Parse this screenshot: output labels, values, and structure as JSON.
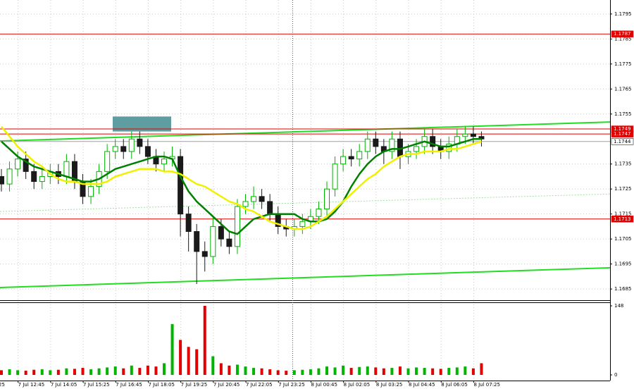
{
  "chart_data": {
    "type": "candlestick",
    "categories": [
      null,
      null,
      null,
      "7 Jul 12:45",
      null,
      null,
      null,
      "7 Jul 14:05",
      null,
      null,
      null,
      "7 Jul 15:25",
      null,
      null,
      null,
      "7 Jul 16:45",
      null,
      null,
      null,
      "7 Jul 18:05",
      null,
      null,
      null,
      "7 Jul 19:25",
      null,
      null,
      null,
      "7 Jul 20:45",
      null,
      null,
      null,
      "7 Jul 22:05",
      null,
      null,
      null,
      "7 Jul 23:25",
      null,
      null,
      null,
      "8 Jul 00:45",
      null,
      null,
      null,
      "8 Jul 02:05",
      null,
      null,
      null,
      "8 Jul 03:25",
      null,
      null,
      null,
      "8 Jul 04:45",
      null,
      null,
      null,
      "8 Jul 06:05",
      null,
      null,
      null,
      "8 Jul 07:25"
    ],
    "clipped_label": "25",
    "open": [
      1.173,
      1.1727,
      1.1733,
      1.1737,
      1.1732,
      1.1728,
      1.173,
      1.1732,
      1.173,
      1.1736,
      1.1728,
      1.1722,
      1.1726,
      1.1732,
      1.174,
      1.1742,
      1.174,
      1.1745,
      1.1742,
      1.1738,
      1.1735,
      1.1737,
      1.1738,
      1.1715,
      1.1708,
      1.17,
      1.1698,
      1.171,
      1.1705,
      1.1702,
      1.1718,
      1.172,
      1.1722,
      1.172,
      1.1715,
      1.171,
      1.1709,
      1.171,
      1.1712,
      1.1714,
      1.1717,
      1.1725,
      1.1735,
      1.1738,
      1.1737,
      1.174,
      1.1745,
      1.1742,
      1.174,
      1.1745,
      1.1738,
      1.174,
      1.1742,
      1.1746,
      1.1742,
      1.174,
      1.1743,
      1.1746,
      1.1747,
      1.1746
    ],
    "high": [
      1.1733,
      1.1736,
      1.174,
      1.174,
      1.1735,
      1.1733,
      1.1735,
      1.1735,
      1.1739,
      1.1739,
      1.1731,
      1.1729,
      1.1735,
      1.1743,
      1.1745,
      1.1745,
      1.1748,
      1.1748,
      1.1745,
      1.1741,
      1.174,
      1.1742,
      1.1741,
      1.1718,
      1.1711,
      1.1704,
      1.1714,
      1.1713,
      1.1708,
      1.1721,
      1.1723,
      1.1726,
      1.1725,
      1.1723,
      1.1718,
      1.1713,
      1.1713,
      1.1715,
      1.1717,
      1.172,
      1.1728,
      1.1738,
      1.1741,
      1.1741,
      1.1743,
      1.1748,
      1.1748,
      1.1745,
      1.1748,
      1.1748,
      1.1743,
      1.1745,
      1.1749,
      1.1749,
      1.1745,
      1.1746,
      1.1749,
      1.175,
      1.175,
      1.1748
    ],
    "low": [
      1.1724,
      1.1724,
      1.173,
      1.1729,
      1.1725,
      1.1725,
      1.1727,
      1.1727,
      1.1727,
      1.1725,
      1.1719,
      1.1719,
      1.1723,
      1.1729,
      1.1737,
      1.1737,
      1.1737,
      1.1739,
      1.1735,
      1.1732,
      1.1732,
      1.1734,
      1.1706,
      1.17,
      1.1687,
      1.1692,
      1.1695,
      1.1702,
      1.1699,
      1.1699,
      1.1715,
      1.1717,
      1.1717,
      1.1712,
      1.1707,
      1.1706,
      1.1706,
      1.1707,
      1.1709,
      1.1711,
      1.1714,
      1.1722,
      1.1732,
      1.1734,
      1.1734,
      1.1737,
      1.1739,
      1.1735,
      1.1737,
      1.1733,
      1.1735,
      1.1737,
      1.1739,
      1.1739,
      1.1737,
      1.1737,
      1.174,
      1.1743,
      1.1743,
      1.1742
    ],
    "close": [
      1.1727,
      1.1733,
      1.1737,
      1.1732,
      1.1728,
      1.173,
      1.1732,
      1.173,
      1.1736,
      1.1728,
      1.1722,
      1.1726,
      1.1732,
      1.174,
      1.1742,
      1.174,
      1.1745,
      1.1742,
      1.1738,
      1.1735,
      1.1737,
      1.1738,
      1.1715,
      1.1708,
      1.17,
      1.1698,
      1.171,
      1.1705,
      1.1702,
      1.1718,
      1.172,
      1.1722,
      1.172,
      1.1715,
      1.171,
      1.1709,
      1.171,
      1.1712,
      1.1714,
      1.1717,
      1.1725,
      1.1735,
      1.1738,
      1.1737,
      1.174,
      1.1745,
      1.1742,
      1.174,
      1.1745,
      1.1738,
      1.174,
      1.1742,
      1.1746,
      1.1742,
      1.174,
      1.1743,
      1.1746,
      1.1747,
      1.1746,
      1.1745
    ],
    "up_color": "#00b400",
    "down_color": "#1a1a1a",
    "series": [
      {
        "color": "#008000",
        "values": [
          1.1744,
          1.1741,
          1.1738,
          1.1736,
          1.1734,
          1.1733,
          1.1732,
          1.1731,
          1.173,
          1.1729,
          1.1728,
          1.1728,
          1.1729,
          1.1731,
          1.1733,
          1.1734,
          1.1735,
          1.1736,
          1.1737,
          1.1738,
          1.1738,
          1.1737,
          1.173,
          1.1724,
          1.172,
          1.1717,
          1.1714,
          1.1711,
          1.1708,
          1.1707,
          1.171,
          1.1713,
          1.1714,
          1.1715,
          1.1715,
          1.1715,
          1.1715,
          1.1713,
          1.1712,
          1.1712,
          1.1713,
          1.1716,
          1.172,
          1.1726,
          1.1731,
          1.1735,
          1.1738,
          1.174,
          1.1741,
          1.1741,
          1.1742,
          1.1743,
          1.1744,
          1.1743,
          1.1742,
          1.1742,
          1.1743,
          1.1744,
          1.1745,
          1.1745
        ]
      },
      {
        "color": "#f0f000",
        "values": [
          1.175,
          1.1746,
          1.1742,
          1.1739,
          1.1736,
          1.1734,
          1.1731,
          1.1729,
          1.1728,
          1.1728,
          1.1727,
          1.1727,
          1.1727,
          1.1728,
          1.173,
          1.1731,
          1.1732,
          1.1733,
          1.1733,
          1.1733,
          1.1732,
          1.1732,
          1.1731,
          1.1729,
          1.1727,
          1.1726,
          1.1724,
          1.1722,
          1.172,
          1.1719,
          1.1717,
          1.1716,
          1.1714,
          1.1712,
          1.1711,
          1.171,
          1.1709,
          1.1709,
          1.171,
          1.1712,
          1.1714,
          1.1717,
          1.172,
          1.1723,
          1.1726,
          1.1729,
          1.1731,
          1.1734,
          1.1736,
          1.1738,
          1.1739,
          1.1739,
          1.174,
          1.174,
          1.174,
          1.1741,
          1.1741,
          1.1742,
          1.1743,
          1.1744
        ]
      }
    ],
    "ylim": [
      1.16808,
      1.18006
    ],
    "yticks": [
      1.1795,
      1.1785,
      1.1775,
      1.1765,
      1.1755,
      1.1735,
      1.1725,
      1.1715,
      1.1705,
      1.1695,
      1.1685
    ],
    "grid": true,
    "levels": [
      {
        "value": 1.1787,
        "color": "#e00000"
      },
      {
        "value": 1.1749,
        "color": "#e00000"
      },
      {
        "value": 1.1747,
        "color": "#e00000"
      },
      {
        "value": 1.1744,
        "color": "#a0a0a0"
      },
      {
        "value": 1.1713,
        "color": "#e00000"
      }
    ],
    "trendlines": [
      {
        "values": [
          1.17442,
          1.17518
        ],
        "color": "#22dd22",
        "dotted": false
      },
      {
        "values": [
          1.16856,
          1.16935
        ],
        "color": "#22dd22",
        "dotted": false
      },
      {
        "values": [
          1.1716,
          1.1723
        ],
        "color": "#9fe09f",
        "dotted": true
      }
    ],
    "zone": {
      "values": [
        1.1748,
        1.1754
      ],
      "color": "#5f9ea0"
    },
    "volume": {
      "values": [
        10,
        12,
        10,
        9,
        11,
        12,
        10,
        11,
        14,
        13,
        15,
        12,
        14,
        16,
        18,
        14,
        20,
        15,
        20,
        18,
        25,
        109,
        75,
        60,
        55,
        148,
        40,
        25,
        20,
        22,
        18,
        15,
        14,
        12,
        10,
        9,
        10,
        11,
        12,
        14,
        18,
        16,
        20,
        15,
        17,
        18,
        16,
        14,
        15,
        18,
        14,
        16,
        15,
        14,
        13,
        15,
        16,
        18,
        14,
        25
      ],
      "ylim": [
        0,
        148
      ],
      "yticks": [
        148,
        0
      ]
    }
  }
}
